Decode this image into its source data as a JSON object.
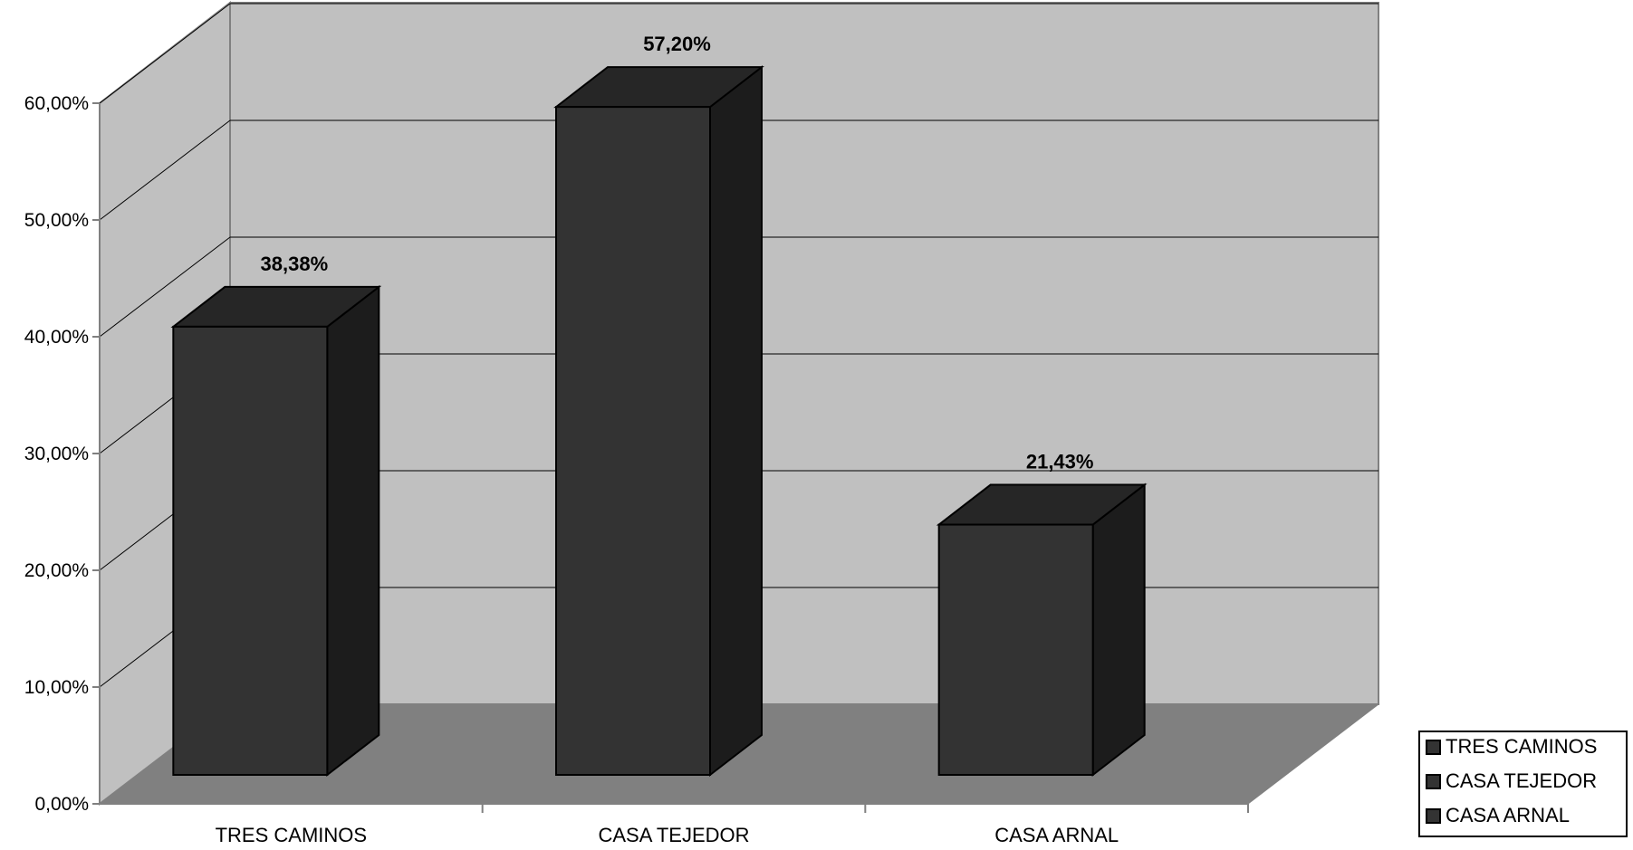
{
  "chart_data": {
    "type": "bar",
    "categories": [
      "TRES CAMINOS",
      "CASA TEJEDOR",
      "CASA ARNAL"
    ],
    "values": [
      38.38,
      57.2,
      21.43
    ],
    "data_labels": [
      "38,38%",
      "57,20%",
      "21,43%"
    ],
    "y_tick_labels": [
      "0,00%",
      "10,00%",
      "20,00%",
      "30,00%",
      "40,00%",
      "50,00%",
      "60,00%"
    ],
    "ylim": [
      0,
      60
    ],
    "grid": true,
    "three_d": true,
    "legend": {
      "position": "bottom-right",
      "entries": [
        "TRES CAMINOS",
        "CASA TEJEDOR",
        "CASA ARNAL"
      ]
    },
    "colors": {
      "wall": "#c0c0c0",
      "floor": "#808080",
      "bar_front": "#333333",
      "bar_top": "#262626",
      "bar_side": "#1c1c1c",
      "axis": "#808080",
      "text": "#000000"
    }
  }
}
